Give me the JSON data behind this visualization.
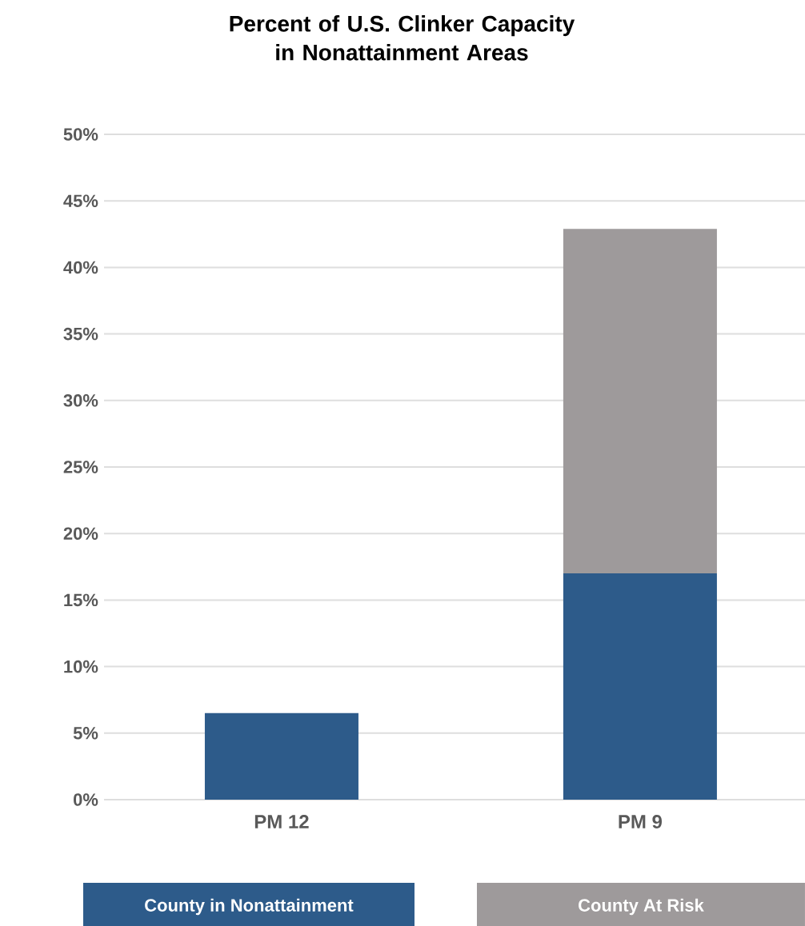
{
  "chart_data": {
    "type": "bar",
    "title": "Percent of U.S. Clinker Capacity in Nonattainment Areas",
    "categories": [
      "PM 12",
      "PM 9"
    ],
    "stacked": true,
    "series": [
      {
        "name": "County in Nonattainment",
        "color": "#2d5b8a",
        "values": [
          6.5,
          17.0
        ]
      },
      {
        "name": "County At Risk",
        "color": "#9e9a9b",
        "values": [
          null,
          25.9
        ]
      }
    ],
    "ylim": [
      0,
      50
    ],
    "yticks": [
      {
        "value": 0,
        "label": "0%"
      },
      {
        "value": 5,
        "label": "5%"
      },
      {
        "value": 10,
        "label": "10%"
      },
      {
        "value": 15,
        "label": "15%"
      },
      {
        "value": 20,
        "label": "20%"
      },
      {
        "value": 25,
        "label": "25%"
      },
      {
        "value": 30,
        "label": "30%"
      },
      {
        "value": 35,
        "label": "35%"
      },
      {
        "value": 40,
        "label": "40%"
      },
      {
        "value": 45,
        "label": "45%"
      },
      {
        "value": 50,
        "label": "50%"
      }
    ],
    "grid": "y",
    "legend": "bottom"
  }
}
